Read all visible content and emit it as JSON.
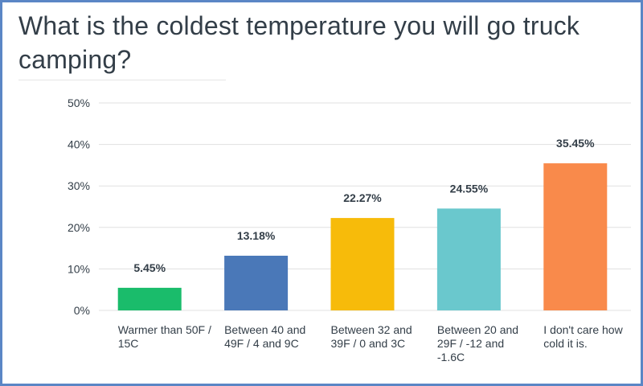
{
  "chart_data": {
    "type": "bar",
    "title": "What is the coldest temperature you will go truck camping?",
    "categories": [
      "Warmer than 50F / 15C",
      "Between 40 and 49F / 4 and 9C",
      "Between 32 and 39F / 0 and 3C",
      "Between 20 and 29F / -12 and -1.6C",
      "I don't care how cold it is."
    ],
    "values": [
      5.45,
      13.18,
      22.27,
      24.55,
      35.45
    ],
    "value_labels": [
      "5.45%",
      "13.18%",
      "22.27%",
      "24.55%",
      "35.45%"
    ],
    "colors": [
      "#1abc6b",
      "#4a78b8",
      "#f7bb0a",
      "#6ac8cd",
      "#f98a4b"
    ],
    "ylim": [
      0,
      50
    ],
    "yticks": [
      "0%",
      "10%",
      "20%",
      "30%",
      "40%",
      "50%"
    ],
    "grid": true,
    "legend": "none"
  }
}
